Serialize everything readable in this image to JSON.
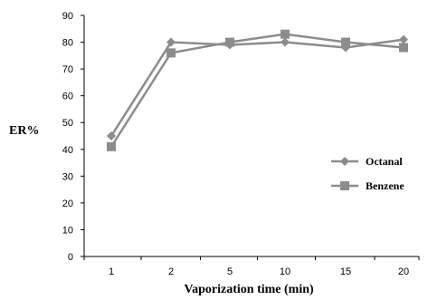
{
  "chart_data": {
    "type": "line",
    "title": "",
    "xlabel": "Vaporization time (min)",
    "ylabel": "ER%",
    "categories": [
      "1",
      "2",
      "5",
      "10",
      "15",
      "20"
    ],
    "ylim": [
      0,
      90
    ],
    "yticks": [
      0,
      10,
      20,
      30,
      40,
      50,
      60,
      70,
      80,
      90
    ],
    "grid": false,
    "legend_position": "right",
    "series": [
      {
        "name": "Octanal",
        "marker": "diamond",
        "color": "#8c8c8c",
        "values": [
          45,
          80,
          79,
          80,
          78,
          81
        ]
      },
      {
        "name": "Benzene",
        "marker": "square",
        "color": "#8c8c8c",
        "values": [
          41,
          76,
          80,
          83,
          80,
          78
        ]
      }
    ]
  }
}
